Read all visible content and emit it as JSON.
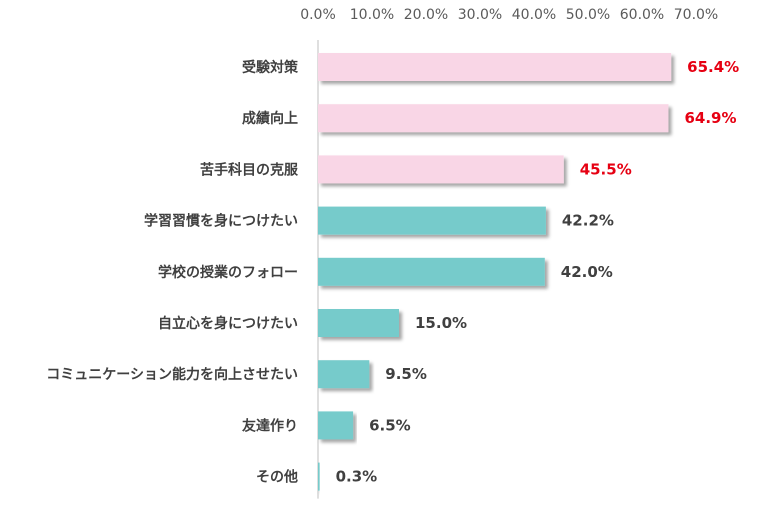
{
  "chart_data": {
    "type": "bar",
    "orientation": "horizontal",
    "categories": [
      "受験対策",
      "成績向上",
      "苦手科目の克服",
      "学習習慣を身につけたい",
      "学校の授業のフォロー",
      "自立心を身につけたい",
      "コミュニケーション能力を向上させたい",
      "友達作り",
      "その他"
    ],
    "values": [
      65.4,
      64.9,
      45.5,
      42.2,
      42.0,
      15.0,
      9.5,
      6.5,
      0.3
    ],
    "value_labels": [
      "65.4%",
      "64.9%",
      "45.5%",
      "42.2%",
      "42.0%",
      "15.0%",
      "9.5%",
      "6.5%",
      "0.3%"
    ],
    "x_ticks": [
      "0.0%",
      "10.0%",
      "20.0%",
      "30.0%",
      "40.0%",
      "50.0%",
      "60.0%",
      "70.0%"
    ],
    "xlim": [
      0,
      70
    ],
    "xaxis_position": "top",
    "grid": false,
    "legend": "none",
    "bar_colors": [
      "#f9d6e6",
      "#f9d6e6",
      "#f9d6e6",
      "#76cbcb",
      "#76cbcb",
      "#76cbcb",
      "#76cbcb",
      "#76cbcb",
      "#76cbcb"
    ],
    "value_label_colors": [
      "#e60012",
      "#e60012",
      "#e60012",
      "#404040",
      "#404040",
      "#404040",
      "#404040",
      "#404040",
      "#404040"
    ],
    "axis_color": "#bfbfbf",
    "tick_color": "#5a5a5a",
    "category_color": "#404040"
  }
}
